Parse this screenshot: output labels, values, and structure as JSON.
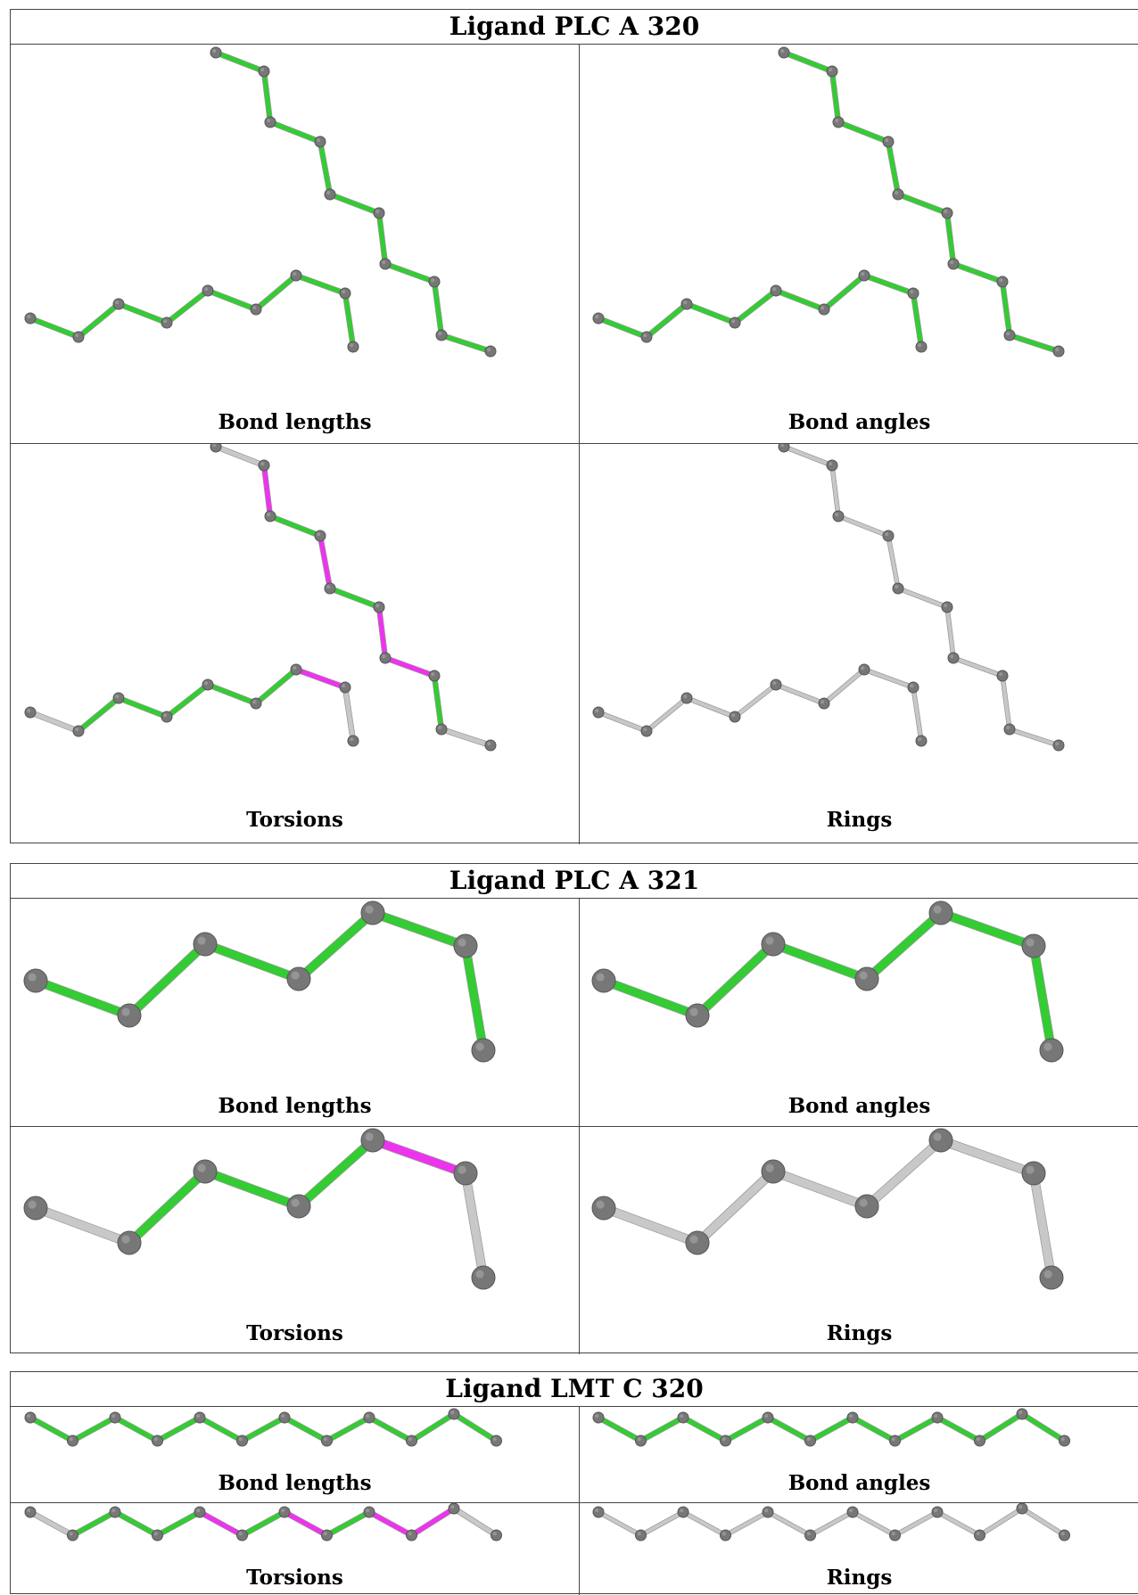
{
  "panel_labels": {
    "bond_lengths": "Bond lengths",
    "bond_angles": "Bond angles",
    "torsions": "Torsions",
    "rings": "Rings"
  },
  "colors": {
    "pass": "#33cc33",
    "fail": "#ee33ee",
    "not_applicable": "#c8c8c8",
    "atom": "#777777"
  },
  "ligands": [
    {
      "title": "Ligand PLC A 320"
    },
    {
      "title": "Ligand PLC A 321"
    },
    {
      "title": "Ligand LMT C 320"
    }
  ]
}
